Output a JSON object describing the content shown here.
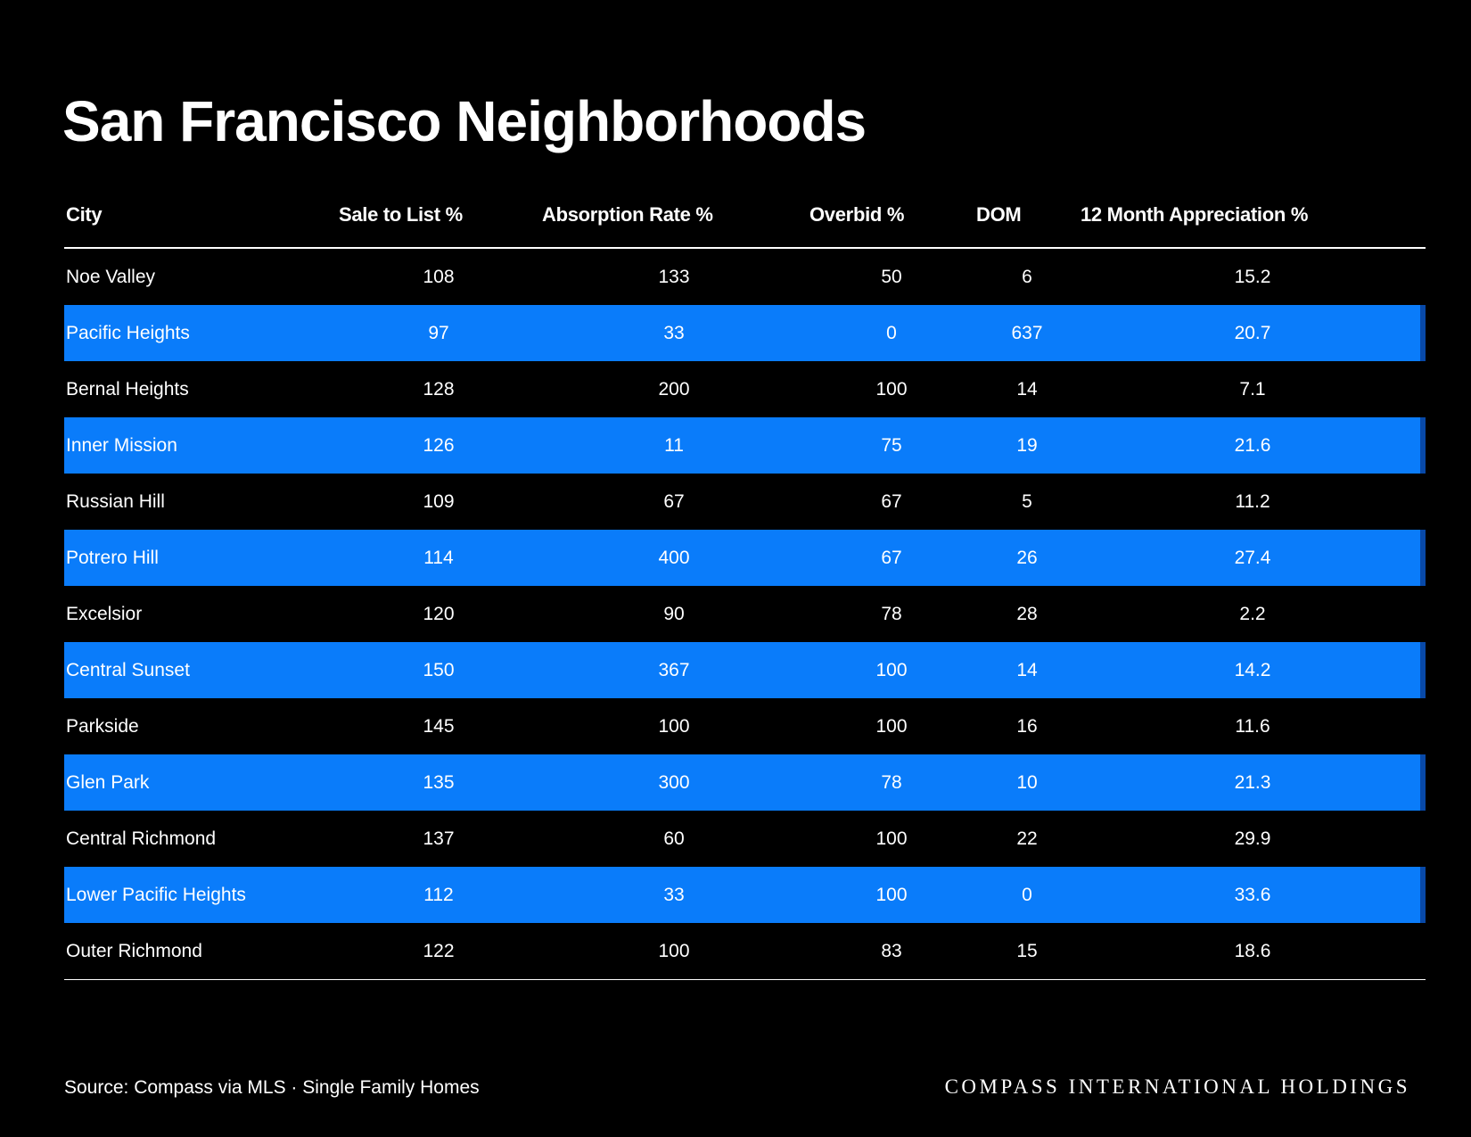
{
  "title": "San Francisco Neighborhoods",
  "table": {
    "headers": [
      "City",
      "Sale to List %",
      "Absorption Rate %",
      "Overbid %",
      "DOM",
      "12 Month Appreciation %"
    ],
    "rows": [
      {
        "city": "Noe Valley",
        "sale_to_list": "108",
        "absorption": "133",
        "overbid": "50",
        "dom": "6",
        "appreciation": "15.2",
        "highlight": false
      },
      {
        "city": "Pacific Heights",
        "sale_to_list": "97",
        "absorption": "33",
        "overbid": "0",
        "dom": "637",
        "appreciation": "20.7",
        "highlight": true
      },
      {
        "city": "Bernal Heights",
        "sale_to_list": "128",
        "absorption": "200",
        "overbid": "100",
        "dom": "14",
        "appreciation": "7.1",
        "highlight": false
      },
      {
        "city": "Inner Mission",
        "sale_to_list": "126",
        "absorption": "11",
        "overbid": "75",
        "dom": "19",
        "appreciation": "21.6",
        "highlight": true
      },
      {
        "city": "Russian Hill",
        "sale_to_list": "109",
        "absorption": "67",
        "overbid": "67",
        "dom": "5",
        "appreciation": "11.2",
        "highlight": false
      },
      {
        "city": "Potrero Hill",
        "sale_to_list": "114",
        "absorption": "400",
        "overbid": "67",
        "dom": "26",
        "appreciation": "27.4",
        "highlight": true
      },
      {
        "city": "Excelsior",
        "sale_to_list": "120",
        "absorption": "90",
        "overbid": "78",
        "dom": "28",
        "appreciation": "2.2",
        "highlight": false
      },
      {
        "city": "Central Sunset",
        "sale_to_list": "150",
        "absorption": "367",
        "overbid": "100",
        "dom": "14",
        "appreciation": "14.2",
        "highlight": true
      },
      {
        "city": "Parkside",
        "sale_to_list": "145",
        "absorption": "100",
        "overbid": "100",
        "dom": "16",
        "appreciation": "11.6",
        "highlight": false
      },
      {
        "city": "Glen Park",
        "sale_to_list": "135",
        "absorption": "300",
        "overbid": "78",
        "dom": "10",
        "appreciation": "21.3",
        "highlight": true
      },
      {
        "city": "Central Richmond",
        "sale_to_list": "137",
        "absorption": "60",
        "overbid": "100",
        "dom": "22",
        "appreciation": "29.9",
        "highlight": false
      },
      {
        "city": "Lower Pacific Heights",
        "sale_to_list": "112",
        "absorption": "33",
        "overbid": "100",
        "dom": "0",
        "appreciation": "33.6",
        "highlight": true
      },
      {
        "city": "Outer Richmond",
        "sale_to_list": "122",
        "absorption": "100",
        "overbid": "83",
        "dom": "15",
        "appreciation": "18.6",
        "highlight": false
      }
    ]
  },
  "footer": {
    "source": "Source: Compass via MLS · Single Family Homes",
    "brand": "COMPASS INTERNATIONAL HOLDINGS"
  },
  "colors": {
    "background": "#000000",
    "row_highlight": "#0a7cfa",
    "row_highlight_edge": "#0849a8",
    "text": "#ffffff"
  }
}
